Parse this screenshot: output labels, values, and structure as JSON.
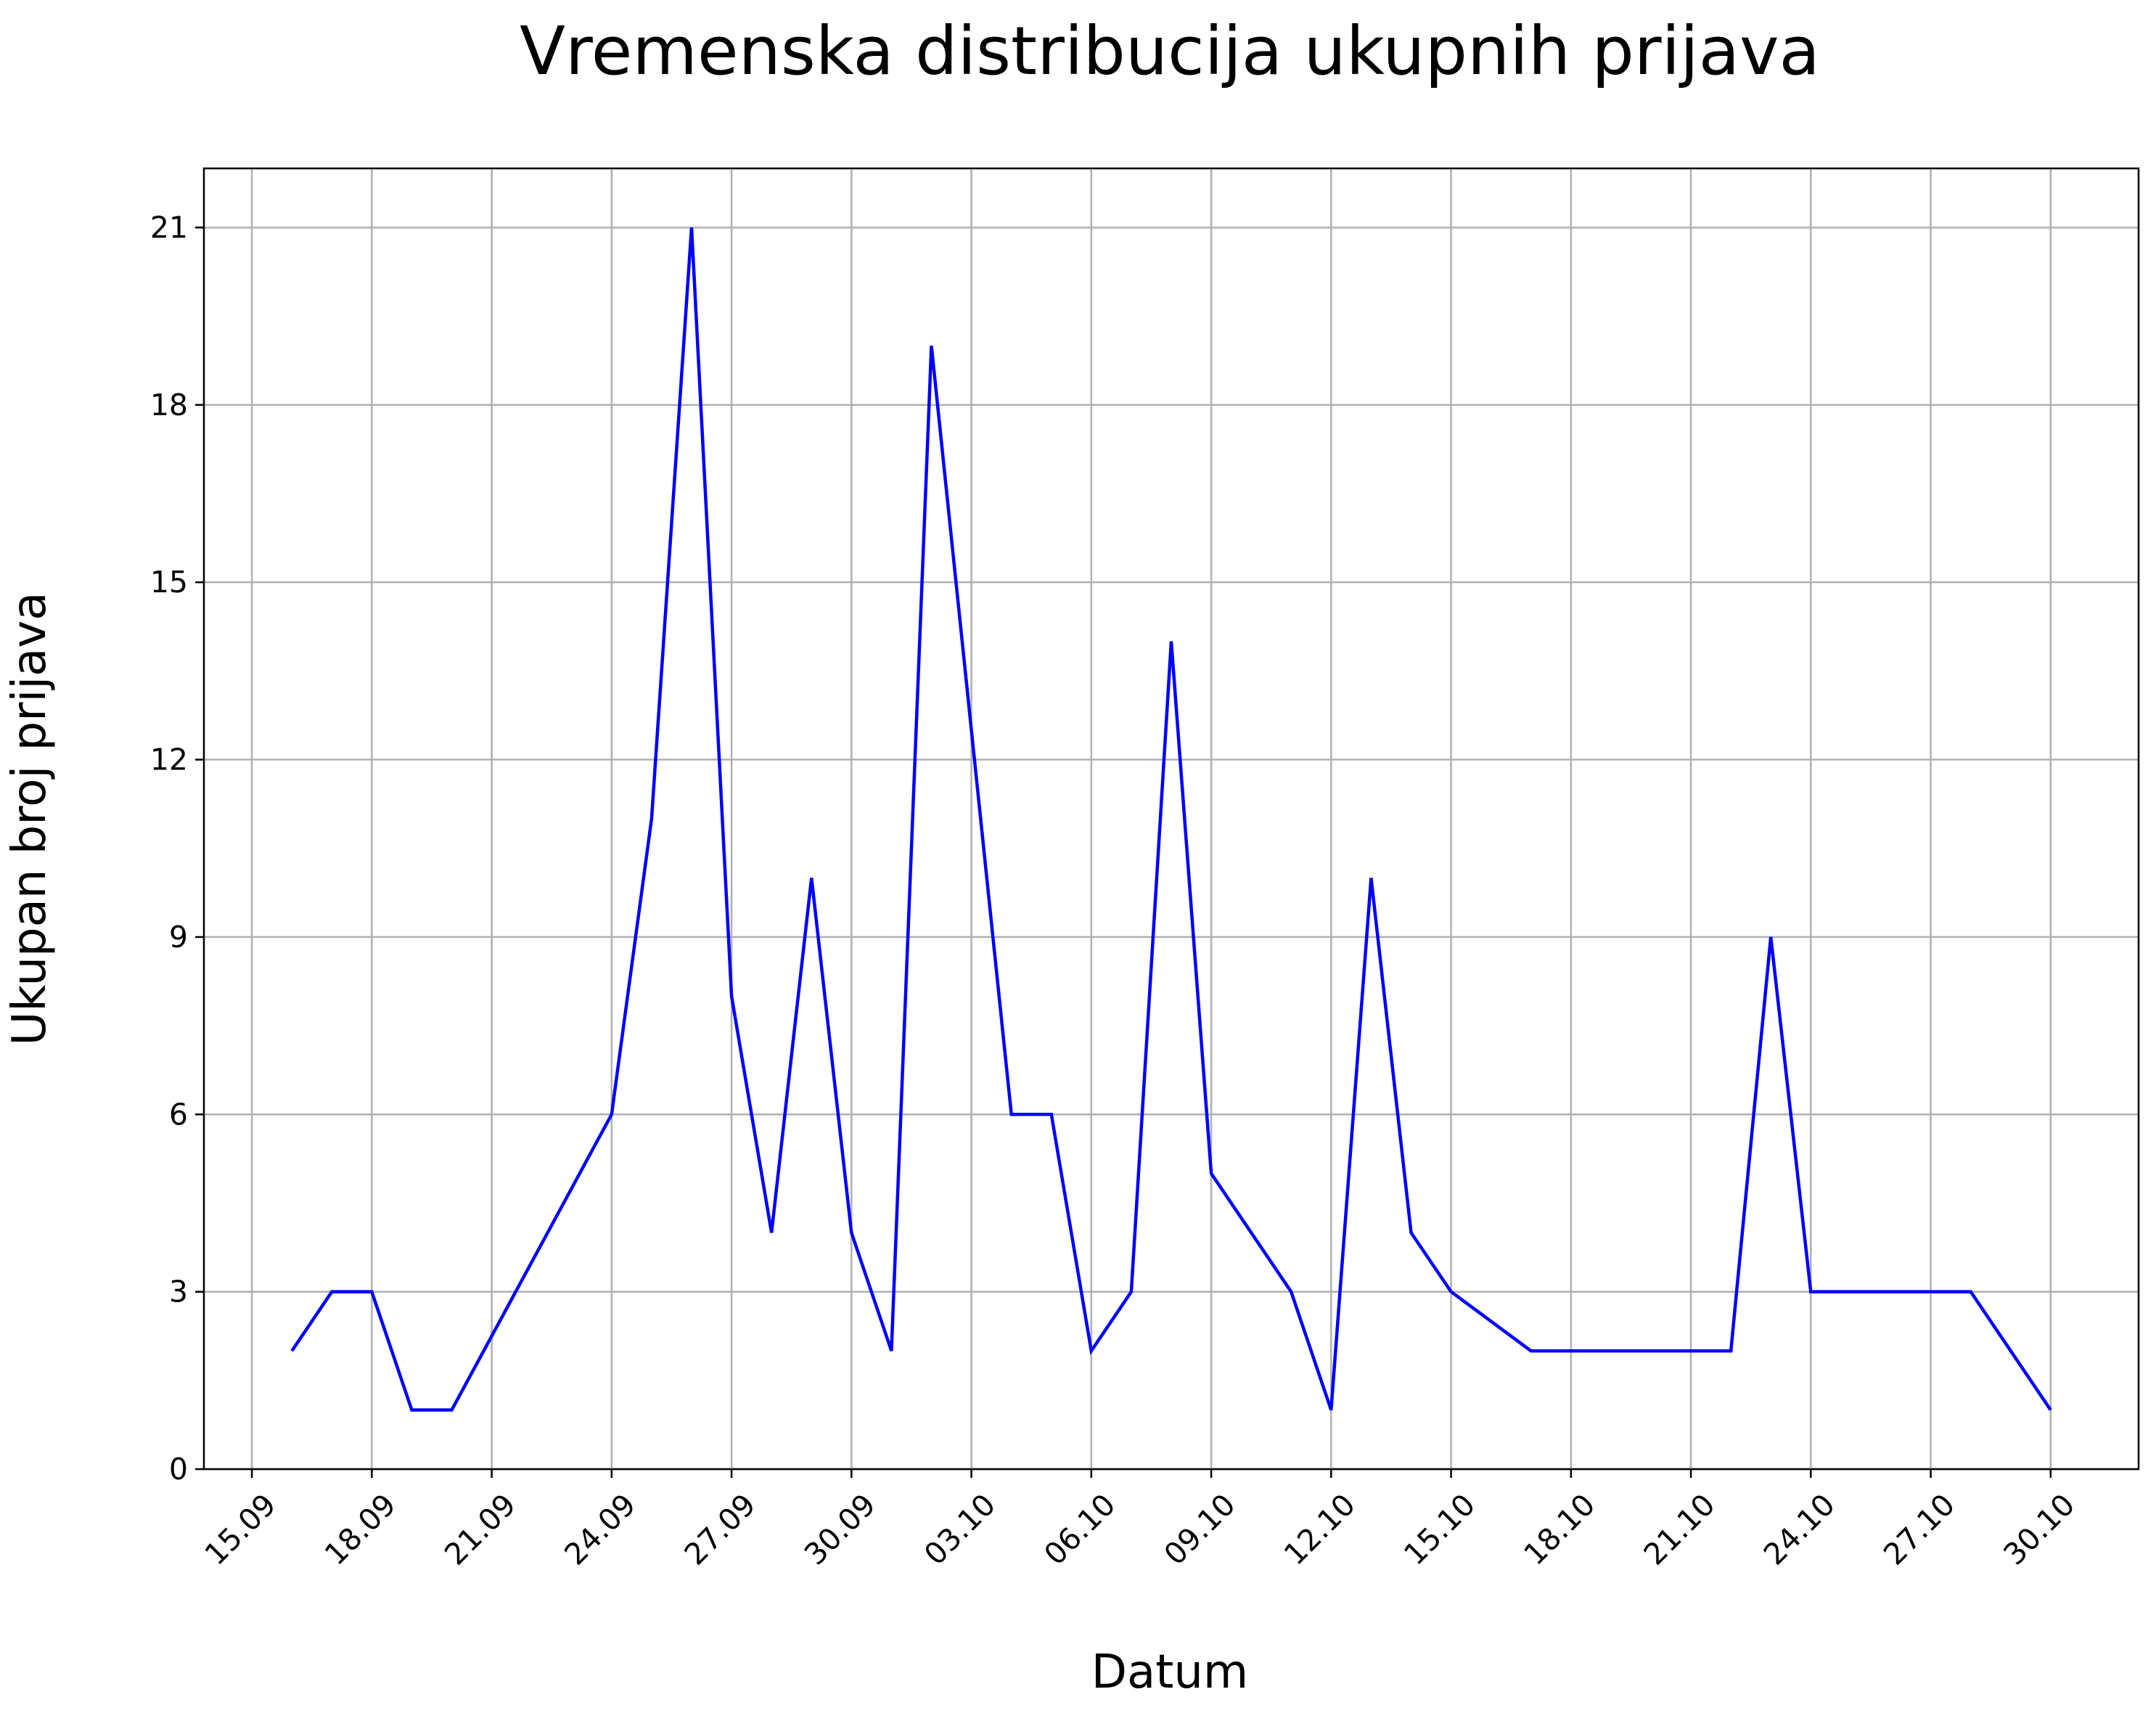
{
  "chart_data": {
    "type": "line",
    "title": "Vremenska distribucija ukupnih prijava",
    "xlabel": "Datum",
    "ylabel": "Ukupan broj prijava",
    "x_ticks": [
      "15.09",
      "18.09",
      "21.09",
      "24.09",
      "27.09",
      "30.09",
      "03.10",
      "06.10",
      "09.10",
      "12.10",
      "15.10",
      "18.10",
      "21.10",
      "24.10",
      "27.10",
      "30.10"
    ],
    "y_ticks": [
      0,
      3,
      6,
      9,
      12,
      15,
      18,
      21
    ],
    "ylim": [
      0,
      22
    ],
    "xlim": [
      "13.09",
      "31.10"
    ],
    "grid": true,
    "series": [
      {
        "color": "#0000ff",
        "points": [
          [
            "2023-09-16",
            2
          ],
          [
            "2023-09-17",
            3
          ],
          [
            "2023-09-18",
            3
          ],
          [
            "2023-09-19",
            1
          ],
          [
            "2023-09-20",
            1
          ],
          [
            "2023-09-24",
            6
          ],
          [
            "2023-09-25",
            11
          ],
          [
            "2023-09-26",
            21
          ],
          [
            "2023-09-27",
            8
          ],
          [
            "2023-09-28",
            4
          ],
          [
            "2023-09-29",
            10
          ],
          [
            "2023-09-30",
            4
          ],
          [
            "2023-10-01",
            2
          ],
          [
            "2023-10-02",
            19
          ],
          [
            "2023-10-04",
            6
          ],
          [
            "2023-10-05",
            6
          ],
          [
            "2023-10-06",
            2
          ],
          [
            "2023-10-07",
            3
          ],
          [
            "2023-10-08",
            14
          ],
          [
            "2023-10-09",
            5
          ],
          [
            "2023-10-11",
            3
          ],
          [
            "2023-10-12",
            1
          ],
          [
            "2023-10-13",
            10
          ],
          [
            "2023-10-14",
            4
          ],
          [
            "2023-10-15",
            3
          ],
          [
            "2023-10-17",
            2
          ],
          [
            "2023-10-22",
            2
          ],
          [
            "2023-10-23",
            9
          ],
          [
            "2023-10-24",
            3
          ],
          [
            "2023-10-28",
            3
          ],
          [
            "2023-10-30",
            1
          ]
        ]
      }
    ]
  }
}
